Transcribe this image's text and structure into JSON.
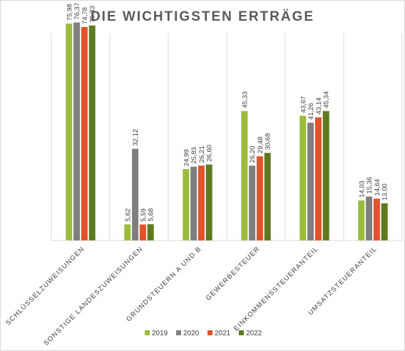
{
  "chart_data": {
    "type": "bar",
    "title": "DIE WICHTIGSTEN ERTRÄGE",
    "categories": [
      "SCHLÜSSELZUWEISUNGEN",
      "SONSTIGE LANDESZUWEISUNGEN",
      "GRUNDSTEUERN A UND B",
      "GEWERBESTEUER",
      "EINKOMMENSSTEUERANTEIL",
      "UMSATZSTEUERANTEIL"
    ],
    "series": [
      {
        "name": "2019",
        "color": "#9bbb3b",
        "values": [
          75.98,
          5.62,
          24.99,
          45.33,
          43.67,
          14.03
        ]
      },
      {
        "name": "2020",
        "color": "#7f7f7f",
        "values": [
          76.37,
          32.12,
          25.83,
          26.2,
          41.26,
          15.36
        ]
      },
      {
        "name": "2021",
        "color": "#e2532b",
        "values": [
          74.78,
          5.59,
          26.21,
          29.48,
          43.14,
          14.64
        ]
      },
      {
        "name": "2022",
        "color": "#5e7a1f",
        "values": [
          75.33,
          5.68,
          26.6,
          30.68,
          45.34,
          13.0
        ]
      }
    ],
    "labels": [
      [
        "75,98",
        "76,37",
        "74,78",
        "75,33"
      ],
      [
        "5,62",
        "32,12",
        "5,59",
        "5,68"
      ],
      [
        "24,99",
        "25,83",
        "26,21",
        "26,60"
      ],
      [
        "45,33",
        "26,20",
        "29,48",
        "30,68"
      ],
      [
        "43,67",
        "41,26",
        "43,14",
        "45,34"
      ],
      [
        "14,03",
        "15,36",
        "14,64",
        "13,00"
      ]
    ],
    "ylim": [
      0,
      80
    ],
    "legend_position": "bottom",
    "grid": "vertical category separators"
  }
}
